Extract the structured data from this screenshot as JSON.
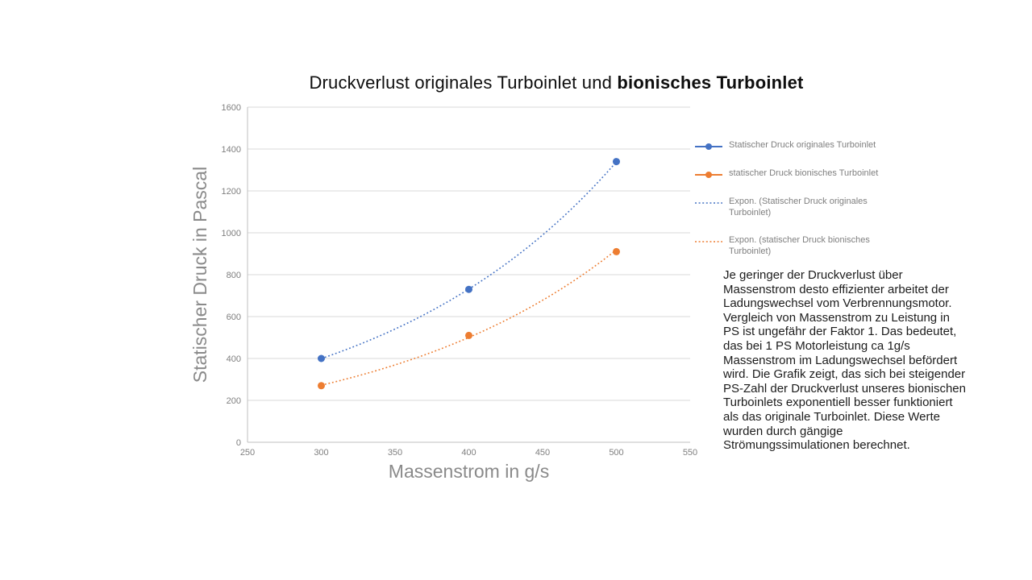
{
  "title": {
    "normal": "Druckverlust originales Turboinlet und ",
    "bold": "bionisches Turboinlet"
  },
  "chart_data": {
    "type": "scatter",
    "title": "Druckverlust originales Turboinlet und bionisches Turboinlet",
    "xlabel": "Massenstrom in g/s",
    "ylabel": "Statischer Druck in Pascal",
    "xlim": [
      250,
      550
    ],
    "ylim": [
      0,
      1600
    ],
    "x_ticks": [
      250,
      300,
      350,
      400,
      450,
      500,
      550
    ],
    "y_ticks": [
      0,
      200,
      400,
      600,
      800,
      1000,
      1200,
      1400,
      1600
    ],
    "grid": "horizontal-only",
    "legend_position": "right",
    "series": [
      {
        "name": "Statischer Druck originales Turboinlet",
        "color": "#4472C4",
        "marker": "circle",
        "line": "none",
        "points": [
          [
            300,
            400
          ],
          [
            400,
            730
          ],
          [
            500,
            1340
          ]
        ]
      },
      {
        "name": "statischer Druck bionisches Turboinlet",
        "color": "#ED7D31",
        "marker": "circle",
        "line": "none",
        "points": [
          [
            300,
            270
          ],
          [
            400,
            510
          ],
          [
            500,
            910
          ]
        ]
      }
    ],
    "trendlines": [
      {
        "name": "Expon. (Statischer Druck originales Turboinlet)",
        "series_index": 0,
        "color": "#4472C4",
        "style": "dotted",
        "fit": "exponential"
      },
      {
        "name": "Expon. (statischer Druck bionisches Turboinlet)",
        "series_index": 1,
        "color": "#ED7D31",
        "style": "dotted",
        "fit": "exponential"
      }
    ],
    "legend_items": [
      {
        "label": "Statischer Druck originales Turboinlet",
        "color": "#4472C4",
        "glyph": "line-marker"
      },
      {
        "label": "statischer Druck bionisches Turboinlet",
        "color": "#ED7D31",
        "glyph": "line-marker"
      },
      {
        "label": "Expon. (Statischer Druck originales Turboinlet)",
        "color": "#4472C4",
        "glyph": "dotted-line"
      },
      {
        "label": "Expon. (statischer Druck bionisches Turboinlet)",
        "color": "#ED7D31",
        "glyph": "dotted-line"
      }
    ]
  },
  "annotation": {
    "text": "Je geringer der Druckverlust über Massenstrom desto effizienter arbeitet der Ladungswechsel vom Verbrennungsmotor. Vergleich von Massenstrom zu Leistung in PS ist ungefähr der Faktor 1. Das bedeutet, das bei 1 PS Motorleistung ca 1g/s Massenstrom im Ladungswechsel befördert wird. Die Grafik zeigt, das sich bei steigender PS-Zahl der Druckverlust unseres bionischen Turboinlets exponentiell besser funktioniert als das originale Turboinlet. Diese Werte wurden durch gängige Strömungssimulationen berechnet."
  },
  "colors": {
    "series_blue": "#4472C4",
    "series_orange": "#ED7D31",
    "gridline": "#D9D9D9",
    "axis_line": "#BFBFBF",
    "tick_label": "#7F7F7F",
    "axis_title": "#8A8A8A",
    "legend_text": "#7F7F7F",
    "annotation_text": "#1C1C1C",
    "title_text": "#0E0E0E"
  }
}
